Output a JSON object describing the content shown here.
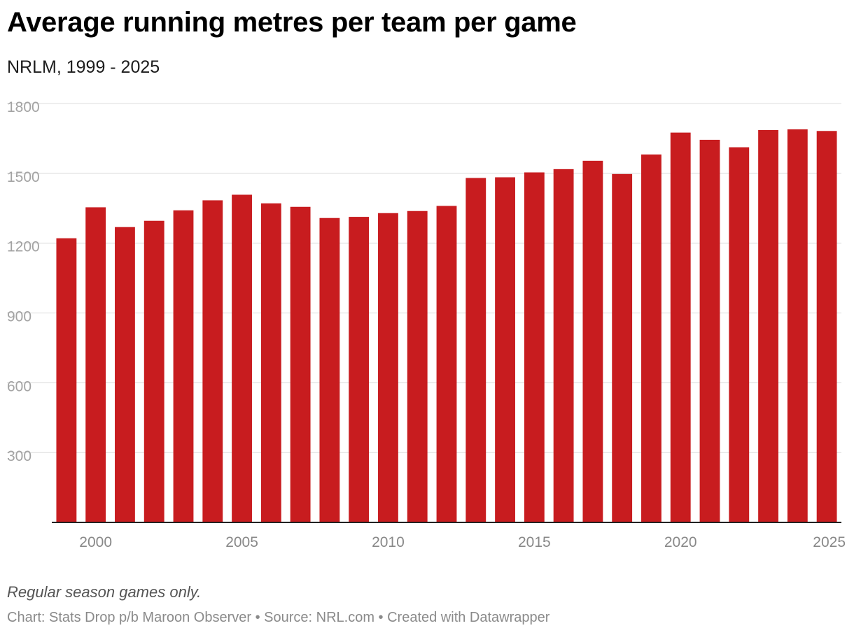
{
  "header": {
    "title": "Average running metres per team per game",
    "subtitle": "NRLM, 1999 - 2025"
  },
  "footer": {
    "note": "Regular season games only.",
    "byline": "Chart: Stats Drop p/b Maroon Observer • Source: NRL.com • Created with Datawrapper"
  },
  "colors": {
    "bar": "#c81c1f",
    "grid": "#e3e3e3",
    "baseline": "#222222"
  },
  "chart_data": {
    "type": "bar",
    "title": "Average running metres per team per game",
    "subtitle": "NRLM, 1999 - 2025",
    "x": [
      1999,
      2000,
      2001,
      2002,
      2003,
      2004,
      2005,
      2006,
      2007,
      2008,
      2009,
      2010,
      2011,
      2012,
      2013,
      2014,
      2015,
      2016,
      2017,
      2018,
      2019,
      2020,
      2021,
      2022,
      2023,
      2024,
      2025
    ],
    "values": [
      1221,
      1354,
      1269,
      1296,
      1341,
      1384,
      1408,
      1371,
      1356,
      1308,
      1313,
      1329,
      1338,
      1360,
      1480,
      1483,
      1504,
      1518,
      1554,
      1497,
      1581,
      1675,
      1644,
      1612,
      1686,
      1689,
      1682
    ],
    "xticks": [
      "2000",
      "2005",
      "2010",
      "2015",
      "2020",
      "2025"
    ],
    "yticks": [
      "300",
      "600",
      "900",
      "1200",
      "1500",
      "1800"
    ],
    "ylim": [
      0,
      1800
    ],
    "xlabel": "",
    "ylabel": "",
    "grid": true,
    "legend": "none"
  }
}
